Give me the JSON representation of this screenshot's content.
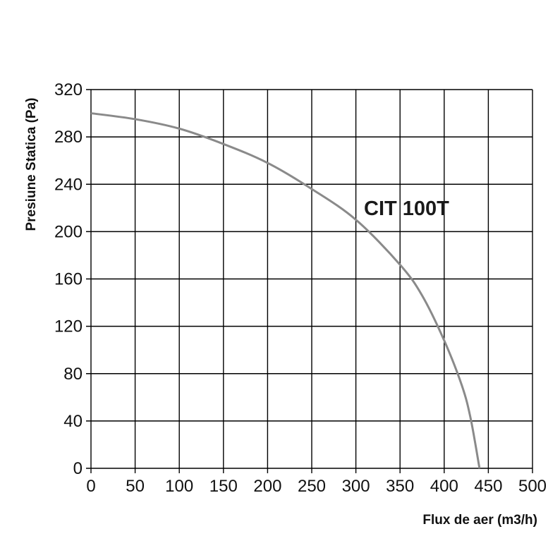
{
  "chart_data": {
    "type": "line",
    "xlabel": "Flux de aer (m3/h)",
    "ylabel": "Presiune Statica (Pa)",
    "xlim": [
      0,
      500
    ],
    "ylim": [
      0,
      320
    ],
    "x_ticks": [
      "0",
      "50",
      "100",
      "150",
      "200",
      "250",
      "300",
      "350",
      "400",
      "450",
      "500"
    ],
    "y_ticks": [
      "0",
      "40",
      "80",
      "120",
      "160",
      "200",
      "240",
      "280",
      "320"
    ],
    "grid": true,
    "series": [
      {
        "name": "CIT 100T",
        "color": "#8a8a8a",
        "x": [
          0,
          50,
          100,
          150,
          200,
          250,
          300,
          350,
          375,
          400,
          420,
          430,
          440
        ],
        "y": [
          300,
          295,
          287,
          274,
          258,
          236,
          210,
          172,
          146,
          108,
          70,
          42,
          0
        ]
      }
    ]
  }
}
